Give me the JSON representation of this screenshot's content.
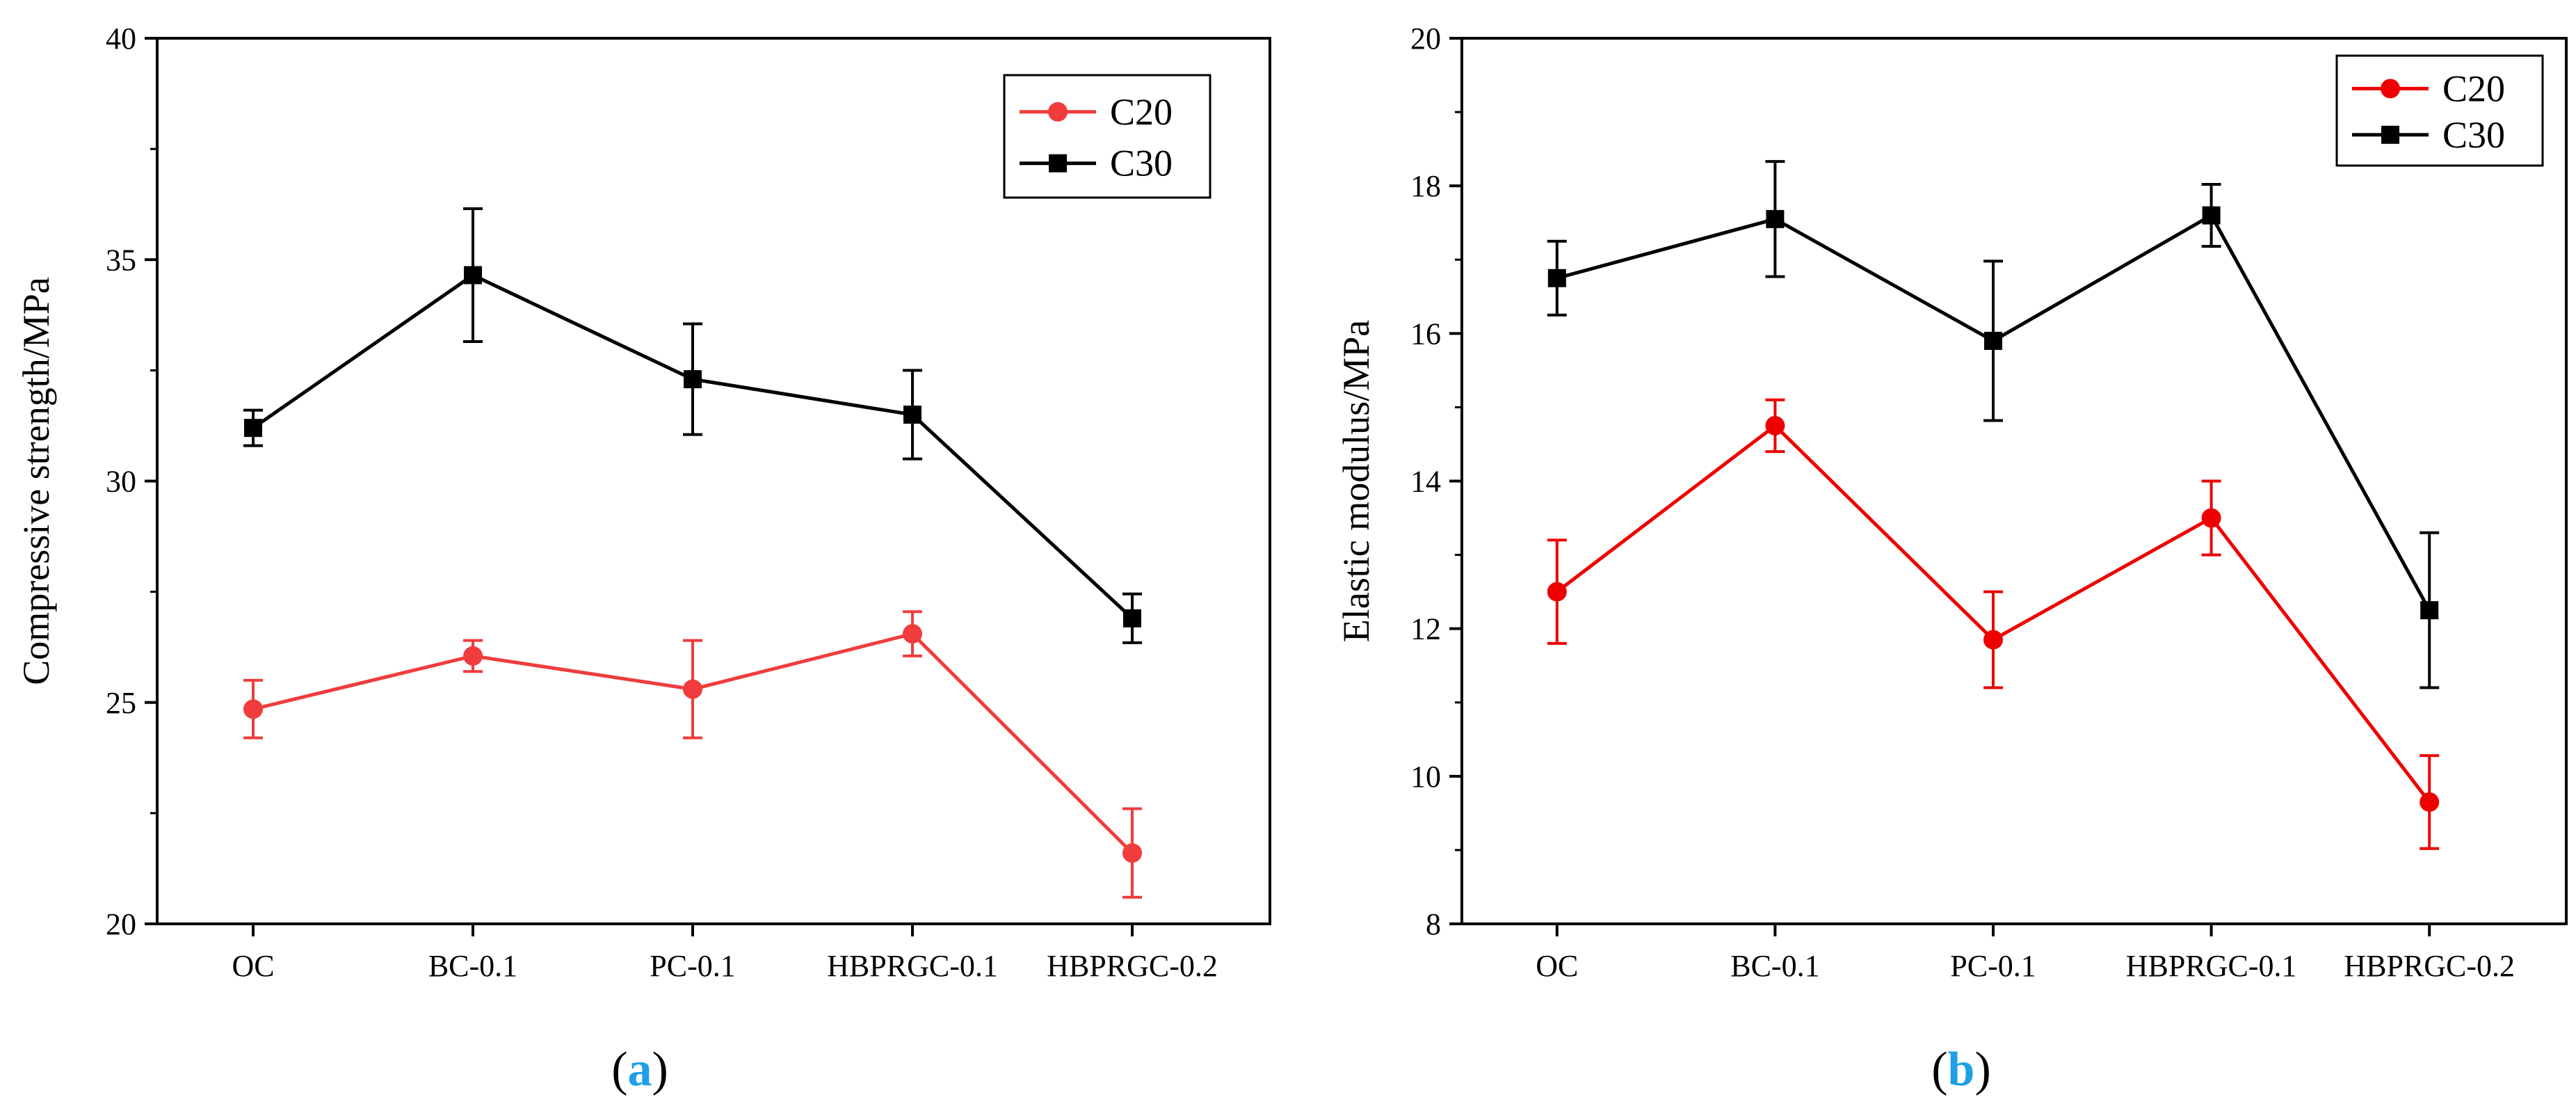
{
  "colors": {
    "c20_a": "#f03c3c",
    "c20_b": "#ee0000",
    "c30": "#000000",
    "panel_letter": "#1ea0e6"
  },
  "chart_data": [
    {
      "id": "a",
      "type": "line",
      "panel_label": {
        "open": "(",
        "letter": "a",
        "close": ")"
      },
      "ylabel": "Compressive strength/MPa",
      "xlabel": "",
      "ylim": [
        20,
        40
      ],
      "yticks": [
        20,
        25,
        30,
        35,
        40
      ],
      "categories": [
        "OC",
        "BC-0.1",
        "PC-0.1",
        "HBPRGC-0.1",
        "HBPRGC-0.2"
      ],
      "legend_position": "top-right",
      "series": [
        {
          "name": "C20",
          "marker": "circle",
          "color": "#f03c3c",
          "values": [
            24.85,
            26.05,
            25.3,
            26.55,
            21.6
          ],
          "errors": [
            0.65,
            0.35,
            1.1,
            0.5,
            1.0
          ]
        },
        {
          "name": "C30",
          "marker": "square",
          "color": "#000000",
          "values": [
            31.2,
            34.65,
            32.3,
            31.5,
            26.9
          ],
          "errors": [
            0.4,
            1.5,
            1.25,
            1.0,
            0.55
          ]
        }
      ]
    },
    {
      "id": "b",
      "type": "line",
      "panel_label": {
        "open": "(",
        "letter": "b",
        "close": ")"
      },
      "ylabel": "Elastic modulus/MPa",
      "xlabel": "",
      "ylim": [
        8,
        20
      ],
      "yticks": [
        8,
        10,
        12,
        14,
        16,
        18,
        20
      ],
      "categories": [
        "OC",
        "BC-0.1",
        "PC-0.1",
        "HBPRGC-0.1",
        "HBPRGC-0.2"
      ],
      "legend_position": "top-right",
      "series": [
        {
          "name": "C20",
          "marker": "circle",
          "color": "#ee0000",
          "values": [
            12.5,
            14.75,
            11.85,
            13.5,
            9.65
          ],
          "errors": [
            0.7,
            0.35,
            0.65,
            0.5,
            0.63
          ]
        },
        {
          "name": "C30",
          "marker": "square",
          "color": "#000000",
          "values": [
            16.75,
            17.55,
            15.9,
            17.6,
            12.25
          ],
          "errors": [
            0.5,
            0.78,
            1.08,
            0.42,
            1.05
          ]
        }
      ]
    }
  ]
}
